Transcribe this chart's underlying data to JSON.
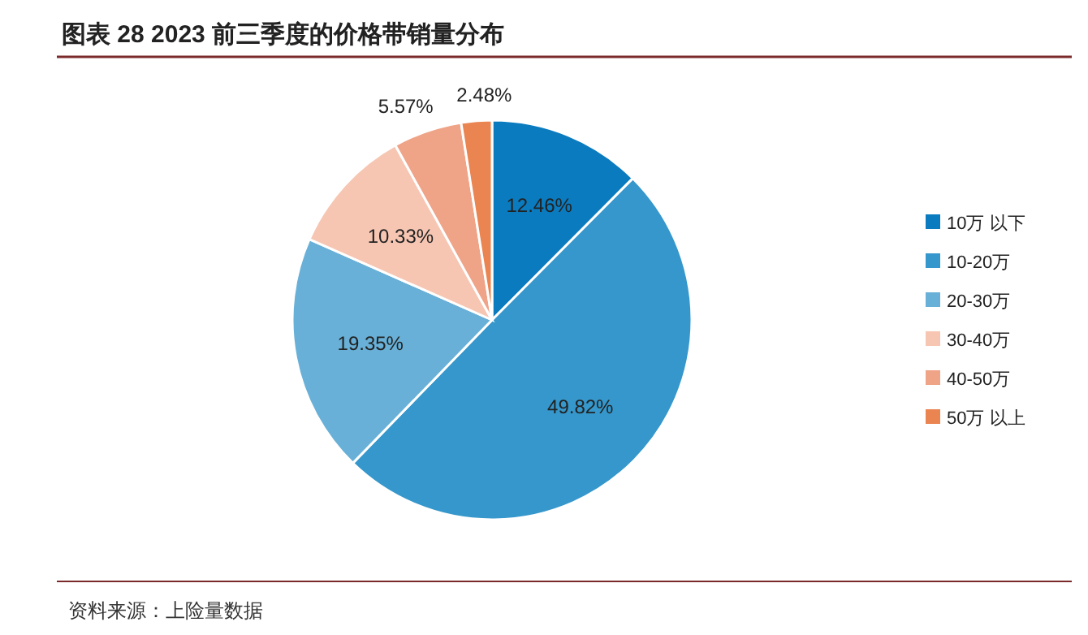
{
  "chart_data": {
    "type": "pie",
    "title": "图表 28 2023 前三季度的价格带销量分布",
    "categories": [
      "10万 以下",
      "10-20万",
      "20-30万",
      "30-40万",
      "40-50万",
      "50万 以上"
    ],
    "values": [
      12.46,
      49.82,
      19.35,
      10.33,
      5.57,
      2.48
    ],
    "value_labels": [
      "12.46%",
      "49.82%",
      "19.35%",
      "10.33%",
      "5.57%",
      "2.48%"
    ],
    "colors": [
      "#0b7bbf",
      "#3597cb",
      "#68b0d7",
      "#f6c6b3",
      "#efa387",
      "#ea8451"
    ],
    "legend": "right",
    "annotations": [
      "资料来源：上险量数据"
    ]
  }
}
